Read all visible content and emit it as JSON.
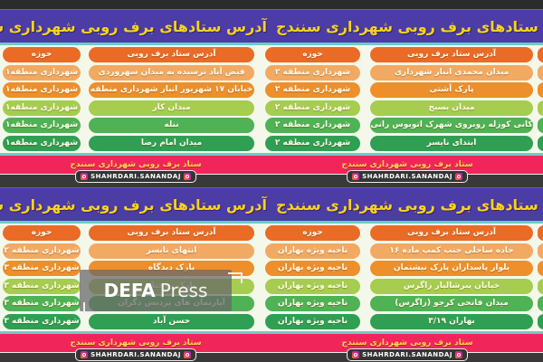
{
  "header": {
    "title": "آدرس ستادهای برف روبی شهرداری سنندج"
  },
  "footer": {
    "caption": "ستاد برف روبی شهرداری سنندج",
    "instagram_handle": "SHAHRDARI.SANANDAJ"
  },
  "watermark": {
    "bold": "DEFA",
    "light": "Press"
  },
  "colors": {
    "header_bg": "#4C3CA6",
    "header_text": "#F7D31D",
    "teal_line": "#6ECBC4",
    "row_header": "#E96B26",
    "row_peach": "#F2A962",
    "row_orange": "#EE8F2B",
    "row_lightgreen": "#A6CC50",
    "row_green": "#4FB254",
    "row_darkgreen": "#2F9F53",
    "footer_pink": "#F0255A",
    "footer_text": "#FFD94A",
    "divider_dark": "#393939",
    "background": "#F4F8EA"
  },
  "sections": [
    {
      "left": {
        "zone_header": "حوزه",
        "address_header": "آدرس ستاد برف روبی",
        "rows": [
          {
            "zone": "شهرداری منطقه۱",
            "address": "فیض آباد نرسیده به میدان سهروردی"
          },
          {
            "zone": "شهرداری منطقه۱",
            "address": "خیابان ۱۷ شهریور انبار شهرداری منطقه"
          },
          {
            "zone": "شهرداری منطقه۱",
            "address": "میدان کار"
          },
          {
            "zone": "شهرداری منطقه۱",
            "address": "ننله"
          },
          {
            "zone": "شهرداری منطقه۱",
            "address": "میدان امام رضا"
          }
        ]
      },
      "right": {
        "zone_header": "حوزه",
        "address_header": "آدرس ستاد برف روبی",
        "rows": [
          {
            "zone": "شهرداری منطقه ۲",
            "address": "میدان محمدی انبار شهرداری"
          },
          {
            "zone": "شهرداری منطقه ۲",
            "address": "پارک آشتی"
          },
          {
            "zone": "شهرداری منطقه ۲",
            "address": "میدان بسیج"
          },
          {
            "zone": "شهرداری منطقه ۲",
            "address": "کانی کوزله روبروی شهرک اتوبوس رانی"
          },
          {
            "zone": "شهرداری منطقه ۲",
            "address": "ابتدای نایسر"
          }
        ]
      }
    },
    {
      "left": {
        "zone_header": "حوزه",
        "address_header": "آدرس ستاد برف روبی",
        "rows": [
          {
            "zone": "شهرداری منطقه ۲",
            "address": "انتهای نایسر"
          },
          {
            "zone": "شهرداری منطقه ۳",
            "address": "پارک دیدگاه"
          },
          {
            "zone": "شهرداری منطقه ۳",
            "address": "پارک روجیار"
          },
          {
            "zone": "شهرداری منطقه ۳",
            "address": "آپارتمان های پردیس دگران"
          },
          {
            "zone": "شهرداری منطقه ۳",
            "address": "حسن آباد"
          }
        ]
      },
      "right": {
        "zone_header": "حوزه",
        "address_header": "آدرس ستاد برف روبی",
        "rows": [
          {
            "zone": "ناحیه ویژه بهاران",
            "address": "جاده ساحلی جنب کمپ ماده ۱۶"
          },
          {
            "zone": "ناحیه ویژه بهاران",
            "address": "بلوار پاسداران پارک نیشتمان"
          },
          {
            "zone": "ناحیه ویژه بهاران",
            "address": "خیابان پیرشالیار زاگرس"
          },
          {
            "zone": "ناحیه ویژه بهاران",
            "address": "میدان فاتحی کرجو (زاگرس)"
          },
          {
            "zone": "ناحیه ویژه بهاران",
            "address": "بهاران ۳/۱۹"
          }
        ]
      }
    }
  ]
}
